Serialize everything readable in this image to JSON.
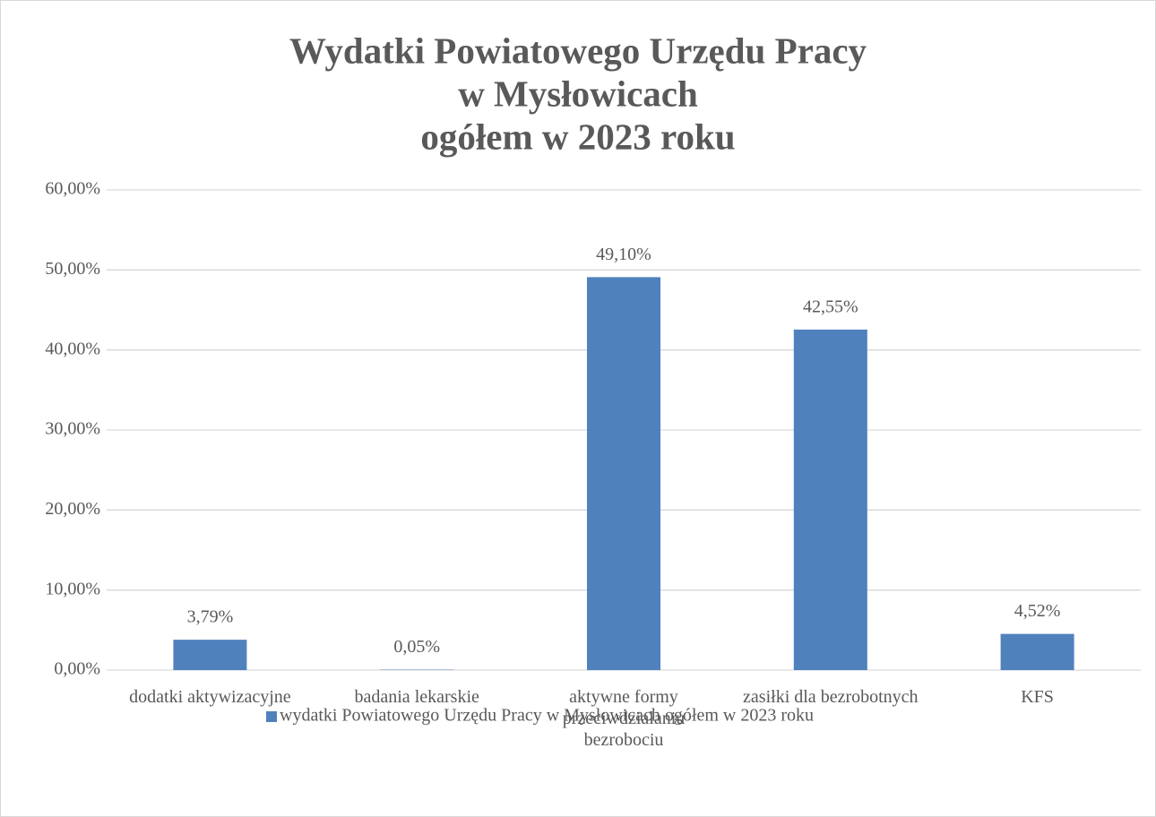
{
  "chart_data": {
    "type": "bar",
    "title": [
      "Wydatki Powiatowego Urzędu Pracy",
      "w Mysłowicach",
      "ogółem w 2023 roku"
    ],
    "categories": [
      "dodatki aktywizacyjne",
      "badania lekarskie",
      "aktywne formy przeciwdziałaniu bezrobociu",
      "zasiłki dla bezrobotnych",
      "KFS"
    ],
    "series": [
      {
        "name": "wydatki Powiatowego Urzędu Pracy w Mysłowicach ogółem w 2023 roku",
        "color": "#4f81bd",
        "values": [
          3.79,
          0.05,
          49.1,
          42.55,
          4.52
        ],
        "value_labels": [
          "3,79%",
          "0,05%",
          "49,10%",
          "42,55%",
          "4,52%"
        ]
      }
    ],
    "ylim": [
      0,
      60
    ],
    "yticks": [
      {
        "value": 0,
        "label": "0,00%"
      },
      {
        "value": 10,
        "label": "10,00%"
      },
      {
        "value": 20,
        "label": "20,00%"
      },
      {
        "value": 30,
        "label": "30,00%"
      },
      {
        "value": 40,
        "label": "40,00%"
      },
      {
        "value": 50,
        "label": "50,00%"
      },
      {
        "value": 60,
        "label": "60,00%"
      }
    ],
    "grid": true,
    "legend": "bottom"
  }
}
